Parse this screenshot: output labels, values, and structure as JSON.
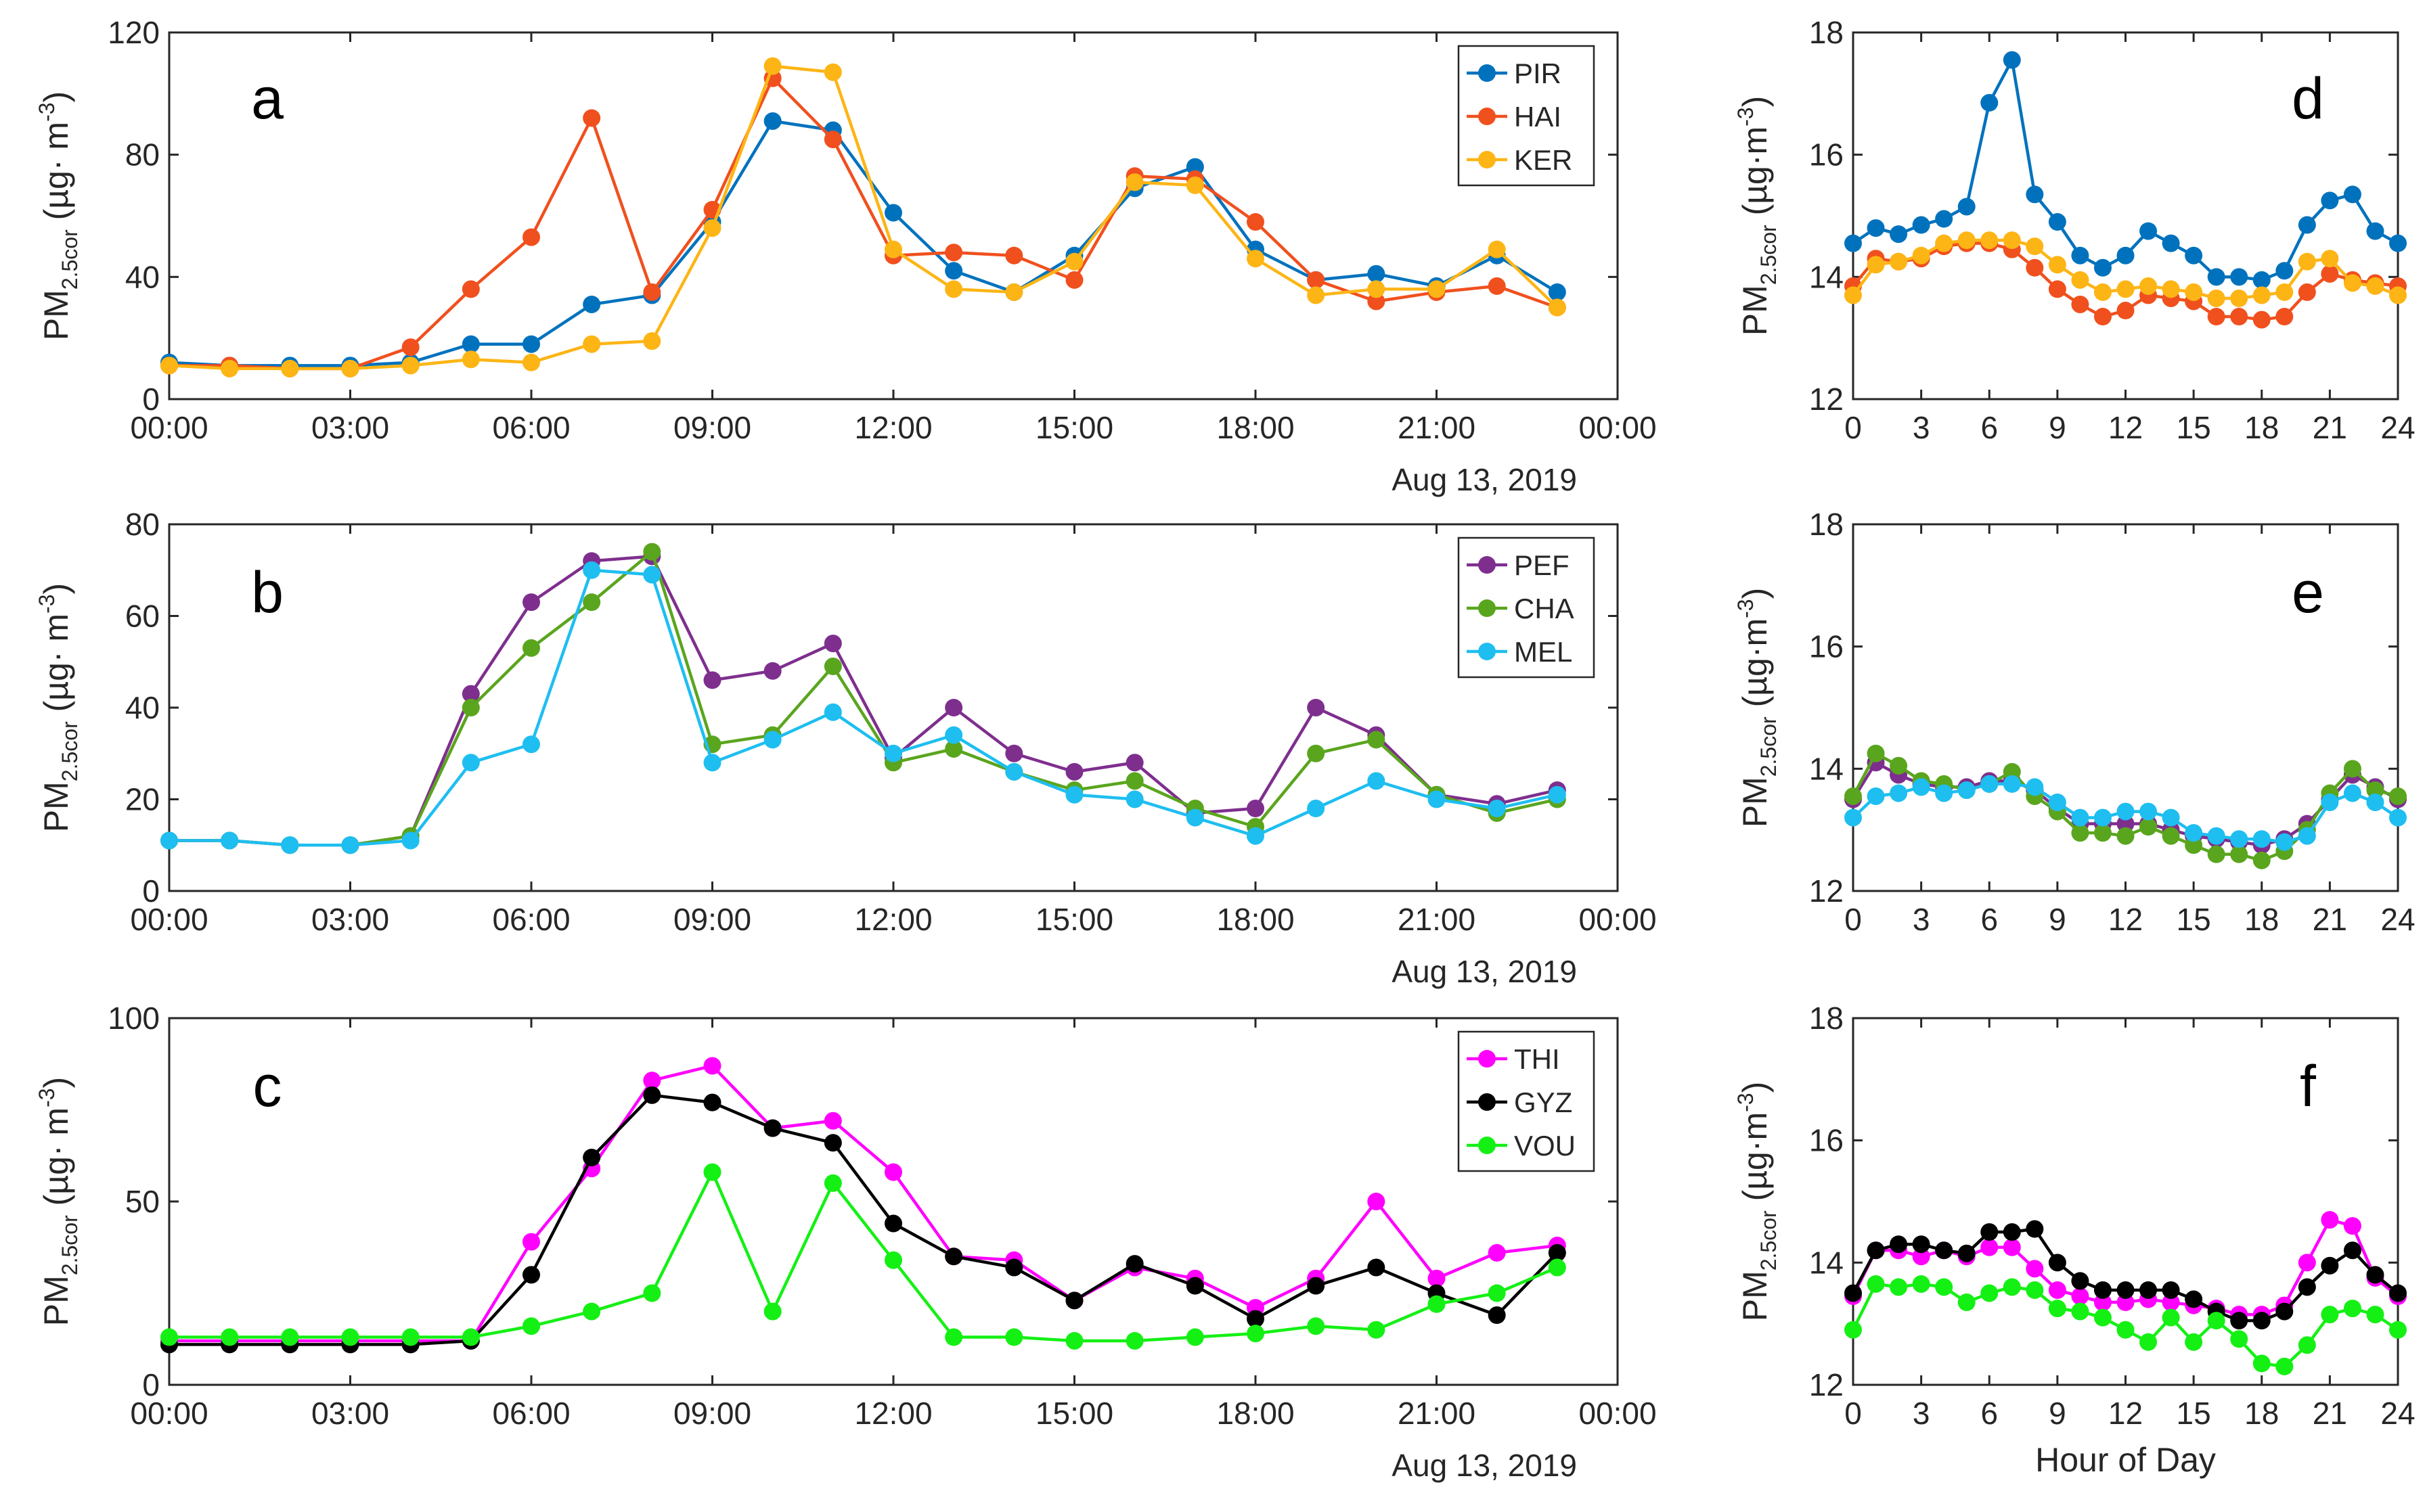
{
  "date_label": "Aug 13, 2019",
  "hour_axis_label": "Hour of Day",
  "ylabel_main": "PM",
  "ylabel_sub": "2.5cor",
  "ylabel_units_a": "(µg· m",
  "ylabel_units_e": "(µg·m",
  "ylabel_units_f": "(µg·m",
  "ylabel_units_b": "(µg· m",
  "ylabel_units_c": "(µg· m",
  "ylabel_units_d": "(µg·m",
  "ylabel_exp": "-3",
  "ylabel_close": ")",
  "colors": {
    "PIR": "#0072BD",
    "HAI": "#F0501E",
    "KER": "#FDB515",
    "PEF": "#7E2F8E",
    "CHA": "#5AA51E",
    "MEL": "#1EBEF0",
    "THI": "#FF00FF",
    "GYZ": "#000000",
    "VOU": "#14F014"
  },
  "chart_data": [
    {
      "id": "a",
      "type": "line",
      "label": "a",
      "xlabel": "",
      "ylabel": "PM2.5cor (µg· m-3)",
      "x": [
        0,
        1,
        2,
        3,
        4,
        5,
        6,
        7,
        8,
        9,
        10,
        11,
        12,
        13,
        14,
        15,
        16,
        17,
        18,
        19,
        20,
        21,
        22,
        23
      ],
      "xlim": [
        0,
        24
      ],
      "ylim": [
        0,
        120
      ],
      "xticks": [
        0,
        3,
        6,
        9,
        12,
        15,
        18,
        21,
        24
      ],
      "xticklabels": [
        "00:00",
        "03:00",
        "06:00",
        "09:00",
        "12:00",
        "15:00",
        "18:00",
        "21:00",
        "00:00"
      ],
      "yticks": [
        0,
        40,
        80,
        120
      ],
      "yticklabels": [
        "0",
        "40",
        "80",
        "120"
      ],
      "series": [
        {
          "name": "PIR",
          "values": [
            12,
            11,
            11,
            11,
            12,
            18,
            18,
            31,
            34,
            58,
            91,
            88,
            61,
            42,
            35,
            47,
            69,
            76,
            49,
            39,
            41,
            37,
            47,
            35
          ]
        },
        {
          "name": "HAI",
          "values": [
            11,
            11,
            10,
            10,
            17,
            36,
            53,
            92,
            35,
            62,
            105,
            85,
            47,
            48,
            47,
            39,
            73,
            72,
            58,
            39,
            32,
            35,
            37,
            30
          ]
        },
        {
          "name": "KER",
          "values": [
            11,
            10,
            10,
            10,
            11,
            13,
            12,
            18,
            19,
            56,
            109,
            107,
            49,
            36,
            35,
            45,
            71,
            70,
            46,
            34,
            36,
            36,
            49,
            30
          ]
        }
      ]
    },
    {
      "id": "b",
      "type": "line",
      "label": "b",
      "xlabel": "",
      "ylabel": "PM2.5cor (µg· m-3)",
      "x": [
        0,
        1,
        2,
        3,
        4,
        5,
        6,
        7,
        8,
        9,
        10,
        11,
        12,
        13,
        14,
        15,
        16,
        17,
        18,
        19,
        20,
        21,
        22,
        23
      ],
      "xlim": [
        0,
        24
      ],
      "ylim": [
        0,
        80
      ],
      "xticks": [
        0,
        3,
        6,
        9,
        12,
        15,
        18,
        21,
        24
      ],
      "xticklabels": [
        "00:00",
        "03:00",
        "06:00",
        "09:00",
        "12:00",
        "15:00",
        "18:00",
        "21:00",
        "00:00"
      ],
      "yticks": [
        0,
        20,
        40,
        60,
        80
      ],
      "yticklabels": [
        "0",
        "20",
        "40",
        "60",
        "80"
      ],
      "series": [
        {
          "name": "PEF",
          "values": [
            11,
            11,
            10,
            10,
            12,
            43,
            63,
            72,
            73,
            46,
            48,
            54,
            29,
            40,
            30,
            26,
            28,
            17,
            18,
            40,
            34,
            21,
            19,
            22
          ]
        },
        {
          "name": "CHA",
          "values": [
            11,
            11,
            10,
            10,
            12,
            40,
            53,
            63,
            74,
            32,
            34,
            49,
            28,
            31,
            26,
            22,
            24,
            18,
            14,
            30,
            33,
            21,
            17,
            20
          ]
        },
        {
          "name": "MEL",
          "values": [
            11,
            11,
            10,
            10,
            11,
            28,
            32,
            70,
            69,
            28,
            33,
            39,
            30,
            34,
            26,
            21,
            20,
            16,
            12,
            18,
            24,
            20,
            18,
            21
          ]
        }
      ]
    },
    {
      "id": "c",
      "type": "line",
      "label": "c",
      "xlabel": "",
      "ylabel": "PM2.5cor (µg· m-3)",
      "x": [
        0,
        1,
        2,
        3,
        4,
        5,
        6,
        7,
        8,
        9,
        10,
        11,
        12,
        13,
        14,
        15,
        16,
        17,
        18,
        19,
        20,
        21,
        22,
        23
      ],
      "xlim": [
        0,
        24
      ],
      "ylim": [
        0,
        100
      ],
      "xticks": [
        0,
        3,
        6,
        9,
        12,
        15,
        18,
        21,
        24
      ],
      "xticklabels": [
        "00:00",
        "03:00",
        "06:00",
        "09:00",
        "12:00",
        "15:00",
        "18:00",
        "21:00",
        "00:00"
      ],
      "yticks": [
        0,
        50,
        100
      ],
      "yticklabels": [
        "0",
        "50",
        "100"
      ],
      "series": [
        {
          "name": "THI",
          "values": [
            12,
            12,
            12,
            12,
            12,
            12,
            39,
            59,
            83,
            87,
            70,
            72,
            58,
            35,
            34,
            23,
            32,
            29,
            21,
            29,
            50,
            29,
            36,
            38
          ]
        },
        {
          "name": "GYZ",
          "values": [
            11,
            11,
            11,
            11,
            11,
            12,
            30,
            62,
            79,
            77,
            70,
            66,
            44,
            35,
            32,
            23,
            33,
            27,
            18,
            27,
            32,
            25,
            19,
            36
          ]
        },
        {
          "name": "VOU",
          "values": [
            13,
            13,
            13,
            13,
            13,
            13,
            16,
            20,
            25,
            58,
            20,
            55,
            34,
            13,
            13,
            12,
            12,
            13,
            14,
            16,
            15,
            22,
            25,
            32
          ]
        }
      ]
    },
    {
      "id": "d",
      "type": "line",
      "label": "d",
      "xlabel": "",
      "ylabel": "PM2.5cor (µg·m-3)",
      "x": [
        0,
        1,
        2,
        3,
        4,
        5,
        6,
        7,
        8,
        9,
        10,
        11,
        12,
        13,
        14,
        15,
        16,
        17,
        18,
        19,
        20,
        21,
        22,
        23,
        24
      ],
      "xlim": [
        0,
        24
      ],
      "ylim": [
        12,
        18
      ],
      "xticks": [
        0,
        3,
        6,
        9,
        12,
        15,
        18,
        21,
        24
      ],
      "xticklabels": [
        "0",
        "3",
        "6",
        "9",
        "12",
        "15",
        "18",
        "21",
        "24"
      ],
      "yticks": [
        12,
        14,
        16,
        18
      ],
      "yticklabels": [
        "12",
        "14",
        "16",
        "18"
      ],
      "series": [
        {
          "name": "PIR",
          "values": [
            14.55,
            14.8,
            14.7,
            14.85,
            14.95,
            15.15,
            16.85,
            17.55,
            15.35,
            14.9,
            14.35,
            14.15,
            14.35,
            14.75,
            14.55,
            14.35,
            14.0,
            14.0,
            13.95,
            14.1,
            14.85,
            15.25,
            15.35,
            14.75,
            14.55
          ]
        },
        {
          "name": "HAI",
          "values": [
            13.85,
            14.3,
            14.25,
            14.3,
            14.5,
            14.55,
            14.55,
            14.45,
            14.15,
            13.8,
            13.55,
            13.35,
            13.45,
            13.7,
            13.65,
            13.6,
            13.35,
            13.35,
            13.3,
            13.35,
            13.75,
            14.05,
            13.95,
            13.9,
            13.85
          ]
        },
        {
          "name": "KER",
          "values": [
            13.7,
            14.2,
            14.25,
            14.35,
            14.55,
            14.6,
            14.6,
            14.6,
            14.5,
            14.2,
            13.95,
            13.75,
            13.8,
            13.85,
            13.8,
            13.75,
            13.65,
            13.65,
            13.7,
            13.75,
            14.25,
            14.3,
            13.9,
            13.85,
            13.7
          ]
        }
      ]
    },
    {
      "id": "e",
      "type": "line",
      "label": "e",
      "xlabel": "",
      "ylabel": "PM2.5cor (µg·m-3)",
      "x": [
        0,
        1,
        2,
        3,
        4,
        5,
        6,
        7,
        8,
        9,
        10,
        11,
        12,
        13,
        14,
        15,
        16,
        17,
        18,
        19,
        20,
        21,
        22,
        23,
        24
      ],
      "xlim": [
        0,
        24
      ],
      "ylim": [
        12,
        18
      ],
      "xticks": [
        0,
        3,
        6,
        9,
        12,
        15,
        18,
        21,
        24
      ],
      "xticklabels": [
        "0",
        "3",
        "6",
        "9",
        "12",
        "15",
        "18",
        "21",
        "24"
      ],
      "yticks": [
        12,
        14,
        16,
        18
      ],
      "yticklabels": [
        "12",
        "14",
        "16",
        "18"
      ],
      "series": [
        {
          "name": "PEF",
          "values": [
            13.5,
            14.1,
            13.9,
            13.75,
            13.7,
            13.7,
            13.8,
            13.8,
            13.65,
            13.35,
            13.1,
            13.1,
            13.1,
            13.1,
            13.0,
            12.9,
            12.85,
            12.8,
            12.75,
            12.85,
            13.1,
            13.5,
            13.9,
            13.7,
            13.5
          ]
        },
        {
          "name": "CHA",
          "values": [
            13.55,
            14.25,
            14.05,
            13.8,
            13.75,
            13.65,
            13.75,
            13.95,
            13.55,
            13.3,
            12.95,
            12.95,
            12.9,
            13.05,
            12.9,
            12.75,
            12.6,
            12.6,
            12.5,
            12.65,
            13.0,
            13.6,
            14.0,
            13.65,
            13.55
          ]
        },
        {
          "name": "MEL",
          "values": [
            13.2,
            13.55,
            13.6,
            13.7,
            13.6,
            13.65,
            13.75,
            13.75,
            13.7,
            13.45,
            13.2,
            13.2,
            13.3,
            13.3,
            13.2,
            12.95,
            12.9,
            12.85,
            12.85,
            12.8,
            12.9,
            13.45,
            13.6,
            13.45,
            13.2
          ]
        }
      ]
    },
    {
      "id": "f",
      "type": "line",
      "label": "f",
      "xlabel": "Hour of Day",
      "ylabel": "PM2.5cor (µg·m-3)",
      "x": [
        0,
        1,
        2,
        3,
        4,
        5,
        6,
        7,
        8,
        9,
        10,
        11,
        12,
        13,
        14,
        15,
        16,
        17,
        18,
        19,
        20,
        21,
        22,
        23,
        24
      ],
      "xlim": [
        0,
        24
      ],
      "ylim": [
        12,
        18
      ],
      "xticks": [
        0,
        3,
        6,
        9,
        12,
        15,
        18,
        21,
        24
      ],
      "xticklabels": [
        "0",
        "3",
        "6",
        "9",
        "12",
        "15",
        "18",
        "21",
        "24"
      ],
      "yticks": [
        12,
        14,
        16,
        18
      ],
      "yticklabels": [
        "12",
        "14",
        "16",
        "18"
      ],
      "series": [
        {
          "name": "THI",
          "values": [
            13.45,
            14.2,
            14.2,
            14.1,
            14.2,
            14.1,
            14.25,
            14.25,
            13.9,
            13.55,
            13.45,
            13.35,
            13.35,
            13.4,
            13.35,
            13.3,
            13.25,
            13.15,
            13.15,
            13.3,
            14.0,
            14.7,
            14.6,
            13.75,
            13.45
          ]
        },
        {
          "name": "GYZ",
          "values": [
            13.5,
            14.2,
            14.3,
            14.3,
            14.2,
            14.15,
            14.5,
            14.5,
            14.55,
            14.0,
            13.7,
            13.55,
            13.55,
            13.55,
            13.55,
            13.4,
            13.2,
            13.05,
            13.05,
            13.2,
            13.6,
            13.95,
            14.2,
            13.8,
            13.5
          ]
        },
        {
          "name": "VOU",
          "values": [
            12.9,
            13.65,
            13.6,
            13.65,
            13.6,
            13.35,
            13.5,
            13.6,
            13.55,
            13.25,
            13.2,
            13.1,
            12.9,
            12.7,
            13.1,
            12.7,
            13.05,
            12.75,
            12.35,
            12.3,
            12.65,
            13.15,
            13.25,
            13.15,
            12.9
          ]
        }
      ]
    }
  ]
}
